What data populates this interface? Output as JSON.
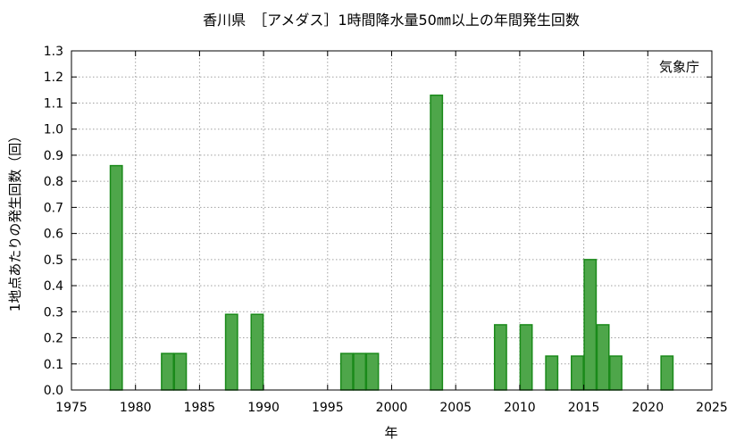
{
  "chart_data": {
    "type": "bar",
    "title": "香川県　［アメダス］1時間降水量50㎜以上の年間発生回数",
    "xlabel": "年",
    "ylabel": "1地点あたりの発生回数（回）",
    "watermark": "気象庁",
    "xlim": [
      1975,
      2025
    ],
    "ylim": [
      0,
      1.3
    ],
    "grid": true,
    "x_ticks": [
      1975,
      1980,
      1985,
      1990,
      1995,
      2000,
      2005,
      2010,
      2015,
      2020,
      2025
    ],
    "y_ticks": [
      0.0,
      0.1,
      0.2,
      0.3,
      0.4,
      0.5,
      0.6,
      0.7,
      0.8,
      0.9,
      1.0,
      1.1,
      1.2,
      1.3
    ],
    "bar_color": "#4ea64a",
    "bar_edge_color": "#1a8a1a",
    "x": [
      1979,
      1983,
      1984,
      1988,
      1990,
      1997,
      1998,
      1999,
      2004,
      2009,
      2011,
      2013,
      2015,
      2016,
      2017,
      2018,
      2022
    ],
    "values": [
      0.86,
      0.14,
      0.14,
      0.29,
      0.29,
      0.14,
      0.14,
      0.14,
      1.13,
      0.25,
      0.25,
      0.13,
      0.13,
      0.5,
      0.25,
      0.13,
      0.13
    ]
  }
}
